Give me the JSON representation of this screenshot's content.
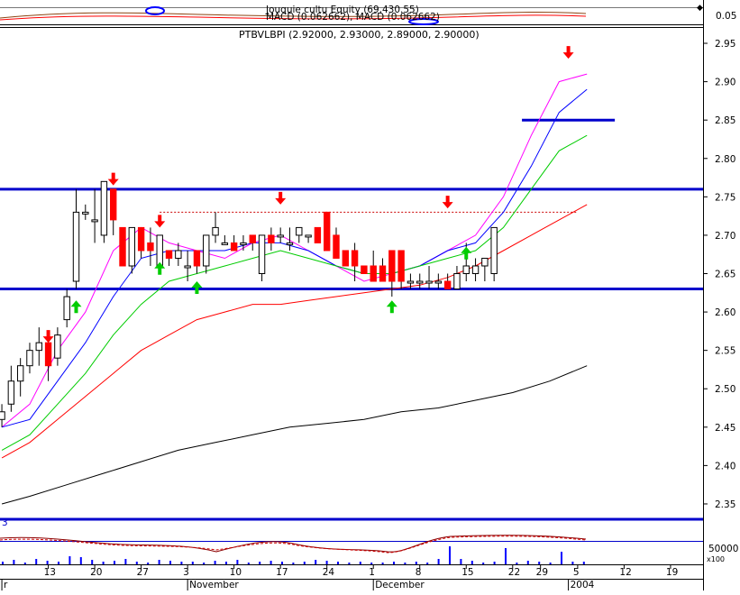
{
  "chart_data": {
    "type": "candlestick",
    "title": "PTBVLBPI (2.92000, 2.93000, 2.89000, 2.90000)",
    "top_panel_labels": [
      "Jouquie cultu Equity (69,430.55)",
      "MACD (0.062662), MACD (0.062662)"
    ],
    "top_panel_ytick": "0.05",
    "bottom_panel_label": "3",
    "bottom_panel_ytick": "50000",
    "bottom_panel_unit": "x100",
    "y_ticks": [
      "2.95",
      "2.90",
      "2.85",
      "2.80",
      "2.75",
      "2.70",
      "2.65",
      "2.60",
      "2.55",
      "2.50",
      "2.45",
      "2.40",
      "2.35"
    ],
    "ylim": [
      2.33,
      2.97
    ],
    "x_day_labels": [
      {
        "i": 2,
        "text": "13"
      },
      {
        "i": 7,
        "text": "20"
      },
      {
        "i": 12,
        "text": "27"
      },
      {
        "i": 17,
        "text": "3"
      },
      {
        "i": 22,
        "text": "10"
      },
      {
        "i": 27,
        "text": "17"
      },
      {
        "i": 32,
        "text": "24"
      },
      {
        "i": 37,
        "text": "1"
      },
      {
        "i": 42,
        "text": "8"
      },
      {
        "i": 47,
        "text": "15"
      },
      {
        "i": 52,
        "text": "22"
      },
      {
        "i": 55,
        "text": "29"
      },
      {
        "i": 59,
        "text": "5"
      },
      {
        "i": 64,
        "text": "12"
      },
      {
        "i": 69,
        "text": "19"
      }
    ],
    "x_month_labels": [
      {
        "i": -3,
        "text": "r"
      },
      {
        "i": 17,
        "text": "November"
      },
      {
        "i": 37,
        "text": "December"
      },
      {
        "i": 58,
        "text": "2004"
      }
    ],
    "x_range": [
      -3.2,
      72.5
    ],
    "candles": [
      {
        "o": 2.46,
        "h": 2.48,
        "l": 2.45,
        "c": 2.47
      },
      {
        "o": 2.48,
        "h": 2.53,
        "l": 2.47,
        "c": 2.51
      },
      {
        "o": 2.51,
        "h": 2.54,
        "l": 2.49,
        "c": 2.53
      },
      {
        "o": 2.53,
        "h": 2.56,
        "l": 2.52,
        "c": 2.55
      },
      {
        "o": 2.55,
        "h": 2.58,
        "l": 2.53,
        "c": 2.56
      },
      {
        "o": 2.56,
        "h": 2.57,
        "l": 2.51,
        "c": 2.53
      },
      {
        "o": 2.54,
        "h": 2.58,
        "l": 2.53,
        "c": 2.57
      },
      {
        "o": 2.59,
        "h": 2.63,
        "l": 2.58,
        "c": 2.62
      },
      {
        "o": 2.64,
        "h": 2.76,
        "l": 2.63,
        "c": 2.73
      },
      {
        "o": 2.73,
        "h": 2.74,
        "l": 2.72,
        "c": 2.73
      },
      {
        "o": 2.72,
        "h": 2.76,
        "l": 2.69,
        "c": 2.72
      },
      {
        "o": 2.7,
        "h": 2.77,
        "l": 2.69,
        "c": 2.77
      },
      {
        "o": 2.76,
        "h": 2.76,
        "l": 2.7,
        "c": 2.72
      },
      {
        "o": 2.71,
        "h": 2.71,
        "l": 2.66,
        "c": 2.66
      },
      {
        "o": 2.66,
        "h": 2.71,
        "l": 2.65,
        "c": 2.71
      },
      {
        "o": 2.71,
        "h": 2.71,
        "l": 2.67,
        "c": 2.68
      },
      {
        "o": 2.69,
        "h": 2.71,
        "l": 2.66,
        "c": 2.68
      },
      {
        "o": 2.66,
        "h": 2.7,
        "l": 2.66,
        "c": 2.7
      },
      {
        "o": 2.68,
        "h": 2.68,
        "l": 2.66,
        "c": 2.67
      },
      {
        "o": 2.67,
        "h": 2.69,
        "l": 2.66,
        "c": 2.68
      },
      {
        "o": 2.66,
        "h": 2.68,
        "l": 2.64,
        "c": 2.66
      },
      {
        "o": 2.68,
        "h": 2.68,
        "l": 2.65,
        "c": 2.66
      },
      {
        "o": 2.66,
        "h": 2.7,
        "l": 2.65,
        "c": 2.7
      },
      {
        "o": 2.7,
        "h": 2.73,
        "l": 2.69,
        "c": 2.71
      },
      {
        "o": 2.69,
        "h": 2.7,
        "l": 2.69,
        "c": 2.69
      },
      {
        "o": 2.69,
        "h": 2.7,
        "l": 2.68,
        "c": 2.68
      },
      {
        "o": 2.69,
        "h": 2.7,
        "l": 2.68,
        "c": 2.69
      },
      {
        "o": 2.7,
        "h": 2.7,
        "l": 2.68,
        "c": 2.69
      },
      {
        "o": 2.65,
        "h": 2.7,
        "l": 2.64,
        "c": 2.7
      },
      {
        "o": 2.7,
        "h": 2.71,
        "l": 2.68,
        "c": 2.69
      },
      {
        "o": 2.7,
        "h": 2.71,
        "l": 2.69,
        "c": 2.7
      },
      {
        "o": 2.69,
        "h": 2.71,
        "l": 2.68,
        "c": 2.69
      },
      {
        "o": 2.7,
        "h": 2.71,
        "l": 2.69,
        "c": 2.71
      },
      {
        "o": 2.7,
        "h": 2.7,
        "l": 2.69,
        "c": 2.7
      },
      {
        "o": 2.71,
        "h": 2.71,
        "l": 2.69,
        "c": 2.69
      },
      {
        "o": 2.73,
        "h": 2.73,
        "l": 2.68,
        "c": 2.68
      },
      {
        "o": 2.7,
        "h": 2.71,
        "l": 2.67,
        "c": 2.67
      },
      {
        "o": 2.68,
        "h": 2.68,
        "l": 2.66,
        "c": 2.66
      },
      {
        "o": 2.68,
        "h": 2.69,
        "l": 2.64,
        "c": 2.66
      },
      {
        "o": 2.66,
        "h": 2.66,
        "l": 2.65,
        "c": 2.65
      },
      {
        "o": 2.66,
        "h": 2.68,
        "l": 2.64,
        "c": 2.64
      },
      {
        "o": 2.66,
        "h": 2.67,
        "l": 2.64,
        "c": 2.64
      },
      {
        "o": 2.68,
        "h": 2.68,
        "l": 2.62,
        "c": 2.64
      },
      {
        "o": 2.68,
        "h": 2.68,
        "l": 2.63,
        "c": 2.64
      },
      {
        "o": 2.64,
        "h": 2.65,
        "l": 2.63,
        "c": 2.64
      },
      {
        "o": 2.64,
        "h": 2.65,
        "l": 2.63,
        "c": 2.64
      },
      {
        "o": 2.64,
        "h": 2.66,
        "l": 2.63,
        "c": 2.64
      },
      {
        "o": 2.64,
        "h": 2.65,
        "l": 2.63,
        "c": 2.64
      },
      {
        "o": 2.64,
        "h": 2.65,
        "l": 2.63,
        "c": 2.63
      },
      {
        "o": 2.63,
        "h": 2.66,
        "l": 2.63,
        "c": 2.65
      },
      {
        "o": 2.65,
        "h": 2.69,
        "l": 2.64,
        "c": 2.66
      },
      {
        "o": 2.65,
        "h": 2.67,
        "l": 2.64,
        "c": 2.66
      },
      {
        "o": 2.66,
        "h": 2.67,
        "l": 2.64,
        "c": 2.67
      },
      {
        "o": 2.65,
        "h": 2.71,
        "l": 2.64,
        "c": 2.71
      }
    ],
    "ma_series": [
      {
        "color": "#ff00ff",
        "points": [
          [
            -3,
            2.45
          ],
          [
            0,
            2.48
          ],
          [
            3,
            2.55
          ],
          [
            6,
            2.6
          ],
          [
            9,
            2.68
          ],
          [
            12,
            2.71
          ],
          [
            15,
            2.69
          ],
          [
            18,
            2.68
          ],
          [
            21,
            2.67
          ],
          [
            24,
            2.69
          ],
          [
            27,
            2.7
          ],
          [
            30,
            2.68
          ],
          [
            33,
            2.66
          ],
          [
            36,
            2.64
          ],
          [
            39,
            2.65
          ],
          [
            42,
            2.66
          ],
          [
            45,
            2.68
          ],
          [
            48,
            2.7
          ],
          [
            51,
            2.75
          ],
          [
            54,
            2.83
          ],
          [
            57,
            2.9
          ],
          [
            60,
            2.91
          ]
        ]
      },
      {
        "color": "#0000ff",
        "points": [
          [
            -3,
            2.45
          ],
          [
            0,
            2.46
          ],
          [
            3,
            2.51
          ],
          [
            6,
            2.56
          ],
          [
            9,
            2.62
          ],
          [
            12,
            2.67
          ],
          [
            15,
            2.68
          ],
          [
            18,
            2.68
          ],
          [
            21,
            2.68
          ],
          [
            24,
            2.69
          ],
          [
            27,
            2.69
          ],
          [
            30,
            2.68
          ],
          [
            33,
            2.66
          ],
          [
            36,
            2.65
          ],
          [
            39,
            2.65
          ],
          [
            42,
            2.66
          ],
          [
            45,
            2.68
          ],
          [
            48,
            2.69
          ],
          [
            51,
            2.73
          ],
          [
            54,
            2.79
          ],
          [
            57,
            2.86
          ],
          [
            60,
            2.89
          ]
        ]
      },
      {
        "color": "#00cc00",
        "points": [
          [
            -3,
            2.42
          ],
          [
            0,
            2.44
          ],
          [
            3,
            2.48
          ],
          [
            6,
            2.52
          ],
          [
            9,
            2.57
          ],
          [
            12,
            2.61
          ],
          [
            15,
            2.64
          ],
          [
            18,
            2.65
          ],
          [
            21,
            2.66
          ],
          [
            24,
            2.67
          ],
          [
            27,
            2.68
          ],
          [
            30,
            2.67
          ],
          [
            33,
            2.66
          ],
          [
            36,
            2.65
          ],
          [
            39,
            2.65
          ],
          [
            42,
            2.66
          ],
          [
            45,
            2.67
          ],
          [
            48,
            2.68
          ],
          [
            51,
            2.71
          ],
          [
            54,
            2.76
          ],
          [
            57,
            2.81
          ],
          [
            60,
            2.83
          ]
        ]
      },
      {
        "color": "#ff0000",
        "points": [
          [
            -3,
            2.41
          ],
          [
            0,
            2.43
          ],
          [
            3,
            2.46
          ],
          [
            6,
            2.49
          ],
          [
            9,
            2.52
          ],
          [
            12,
            2.55
          ],
          [
            15,
            2.57
          ],
          [
            18,
            2.59
          ],
          [
            21,
            2.6
          ],
          [
            24,
            2.61
          ],
          [
            27,
            2.61
          ],
          [
            30,
            2.615
          ],
          [
            33,
            2.62
          ],
          [
            36,
            2.625
          ],
          [
            39,
            2.63
          ],
          [
            42,
            2.635
          ],
          [
            45,
            2.645
          ],
          [
            48,
            2.66
          ],
          [
            51,
            2.68
          ],
          [
            54,
            2.7
          ],
          [
            57,
            2.72
          ],
          [
            60,
            2.74
          ]
        ]
      },
      {
        "color": "#000000",
        "points": [
          [
            -3,
            2.35
          ],
          [
            0,
            2.36
          ],
          [
            4,
            2.375
          ],
          [
            8,
            2.39
          ],
          [
            12,
            2.405
          ],
          [
            16,
            2.42
          ],
          [
            20,
            2.43
          ],
          [
            24,
            2.44
          ],
          [
            28,
            2.45
          ],
          [
            32,
            2.455
          ],
          [
            36,
            2.46
          ],
          [
            40,
            2.47
          ],
          [
            44,
            2.475
          ],
          [
            48,
            2.485
          ],
          [
            52,
            2.495
          ],
          [
            56,
            2.51
          ],
          [
            60,
            2.53
          ]
        ]
      }
    ],
    "horizontal_lines": [
      {
        "y": 2.76,
        "x0": -3.2,
        "x1": 72.5,
        "color": "#0000cc"
      },
      {
        "y": 2.63,
        "x0": -3.2,
        "x1": 72.5,
        "color": "#0000cc"
      },
      {
        "y": 2.33,
        "x0": -3.2,
        "x1": 72.5,
        "color": "#0000cc"
      },
      {
        "y": 2.85,
        "x0": 53,
        "x1": 63,
        "color": "#0000cc"
      }
    ],
    "dashed_line": {
      "y": 2.73,
      "x0": 14,
      "x1": 59,
      "color": "#cc0000"
    },
    "buy_arrows": [
      {
        "i": 5,
        "y": 2.615
      },
      {
        "i": 14,
        "y": 2.665
      },
      {
        "i": 18,
        "y": 2.64
      },
      {
        "i": 39,
        "y": 2.615
      },
      {
        "i": 47,
        "y": 2.685
      }
    ],
    "sell_arrows": [
      {
        "i": 2,
        "y": 2.56
      },
      {
        "i": 9,
        "y": 2.765
      },
      {
        "i": 14,
        "y": 2.71
      },
      {
        "i": 27,
        "y": 2.74
      },
      {
        "i": 45,
        "y": 2.735
      },
      {
        "i": 58,
        "y": 2.93
      }
    ]
  }
}
